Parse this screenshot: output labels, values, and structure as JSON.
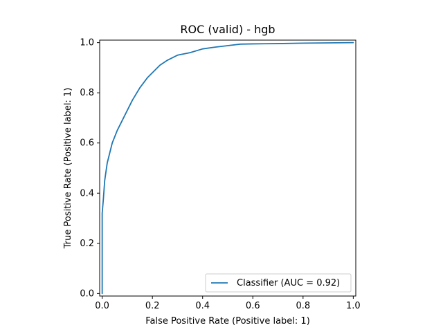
{
  "chart_data": {
    "type": "line",
    "title": "ROC (valid) - hgb",
    "xlabel": "False Positive Rate (Positive label: 1)",
    "ylabel": "True Positive Rate (Positive label: 1)",
    "xlim": [
      -0.01,
      1.01
    ],
    "ylim": [
      -0.01,
      1.01
    ],
    "x_ticks": [
      0.0,
      0.2,
      0.4,
      0.6,
      0.8,
      1.0
    ],
    "y_ticks": [
      0.0,
      0.2,
      0.4,
      0.6,
      0.8,
      1.0
    ],
    "x_tick_labels": [
      "0.0",
      "0.2",
      "0.4",
      "0.6",
      "0.8",
      "1.0"
    ],
    "y_tick_labels": [
      "0.0",
      "0.2",
      "0.4",
      "0.6",
      "0.8",
      "1.0"
    ],
    "grid": false,
    "legend_position": "lower-right",
    "series": [
      {
        "name": "Classifier (AUC = 0.92)",
        "color": "#1f77b4",
        "points": [
          [
            0.0,
            0.0
          ],
          [
            0.0,
            0.32
          ],
          [
            0.005,
            0.38
          ],
          [
            0.01,
            0.45
          ],
          [
            0.02,
            0.52
          ],
          [
            0.03,
            0.56
          ],
          [
            0.04,
            0.6
          ],
          [
            0.06,
            0.65
          ],
          [
            0.08,
            0.69
          ],
          [
            0.1,
            0.73
          ],
          [
            0.12,
            0.77
          ],
          [
            0.15,
            0.82
          ],
          [
            0.18,
            0.86
          ],
          [
            0.2,
            0.88
          ],
          [
            0.23,
            0.91
          ],
          [
            0.26,
            0.93
          ],
          [
            0.3,
            0.95
          ],
          [
            0.35,
            0.96
          ],
          [
            0.4,
            0.975
          ],
          [
            0.45,
            0.982
          ],
          [
            0.5,
            0.988
          ],
          [
            0.55,
            0.994
          ],
          [
            0.6,
            0.995
          ],
          [
            0.7,
            0.996
          ],
          [
            0.8,
            0.998
          ],
          [
            0.9,
            0.999
          ],
          [
            1.0,
            1.0
          ]
        ]
      }
    ]
  }
}
